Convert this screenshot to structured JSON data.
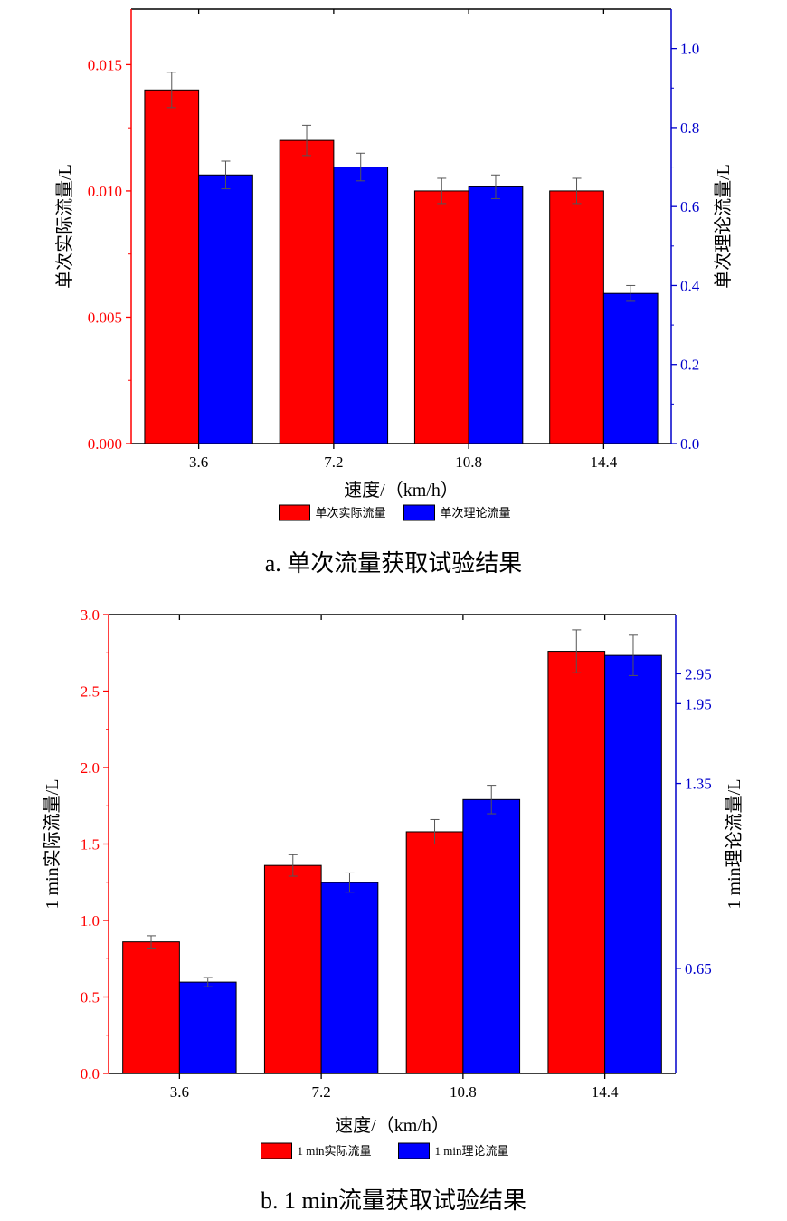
{
  "colors": {
    "actual": "#ff0000",
    "theoretical": "#0000ff",
    "left_axis": "#ff0000",
    "right_axis": "#0000cc",
    "bar_stroke": "#000000",
    "error_bar": "#555555"
  },
  "chart_data": [
    {
      "type": "bar",
      "caption": "a. 单次流量获取试验结果",
      "categories": [
        "3.6",
        "7.2",
        "10.8",
        "14.4"
      ],
      "xlabel": "速度/（km/h）",
      "ylabel_left": "单次实际流量/L",
      "ylabel_right": "单次理论流量/L",
      "ylim_left": [
        0,
        0.0172
      ],
      "ylim_right": [
        0,
        1.1
      ],
      "yticks_left": [
        "0.000",
        "0.005",
        "0.010",
        "0.015"
      ],
      "yticks_right": [
        "0.0",
        "0.2",
        "0.4",
        "0.6",
        "0.8",
        "1.0"
      ],
      "legend_position": "bottom-center",
      "series": [
        {
          "name": "单次实际流量",
          "axis": "left",
          "values": [
            0.014,
            0.012,
            0.01,
            0.01
          ],
          "errors": [
            0.0007,
            0.0006,
            0.0005,
            0.0005
          ]
        },
        {
          "name": "单次理论流量",
          "axis": "right",
          "values": [
            0.68,
            0.7,
            0.65,
            0.38
          ],
          "errors": [
            0.035,
            0.035,
            0.03,
            0.02
          ]
        }
      ]
    },
    {
      "type": "bar",
      "caption": "b. 1 min流量获取试验结果",
      "categories": [
        "3.6",
        "7.2",
        "10.8",
        "14.4"
      ],
      "xlabel": "速度/（km/h）",
      "ylabel_left": "1 min实际流量/L",
      "ylabel_right": "1 min理论流量/L",
      "ylim_left": [
        0,
        3.0
      ],
      "ylim_right": [
        0,
        3.4
      ],
      "yticks_left": [
        "0.0",
        "0.5",
        "1.0",
        "1.5",
        "2.0",
        "2.5",
        "3.0"
      ],
      "yticks_right": [
        {
          "label": "0.65",
          "frac": 0.229
        },
        {
          "label": "1.35",
          "frac": 0.632
        },
        {
          "label": "1.95",
          "frac": 0.806
        },
        {
          "label": "2.95",
          "frac": 0.871
        }
      ],
      "legend_position": "bottom-center",
      "series": [
        {
          "name": "1 min实际流量",
          "axis": "left",
          "values": [
            0.86,
            1.36,
            1.58,
            2.76
          ],
          "errors": [
            0.04,
            0.07,
            0.08,
            0.14
          ]
        },
        {
          "name": "1 min理论流量",
          "axis": "right_frac",
          "values": [
            0.199,
            0.416,
            0.597,
            0.911
          ],
          "errors": [
            0.01,
            0.021,
            0.031,
            0.044
          ]
        }
      ]
    }
  ]
}
